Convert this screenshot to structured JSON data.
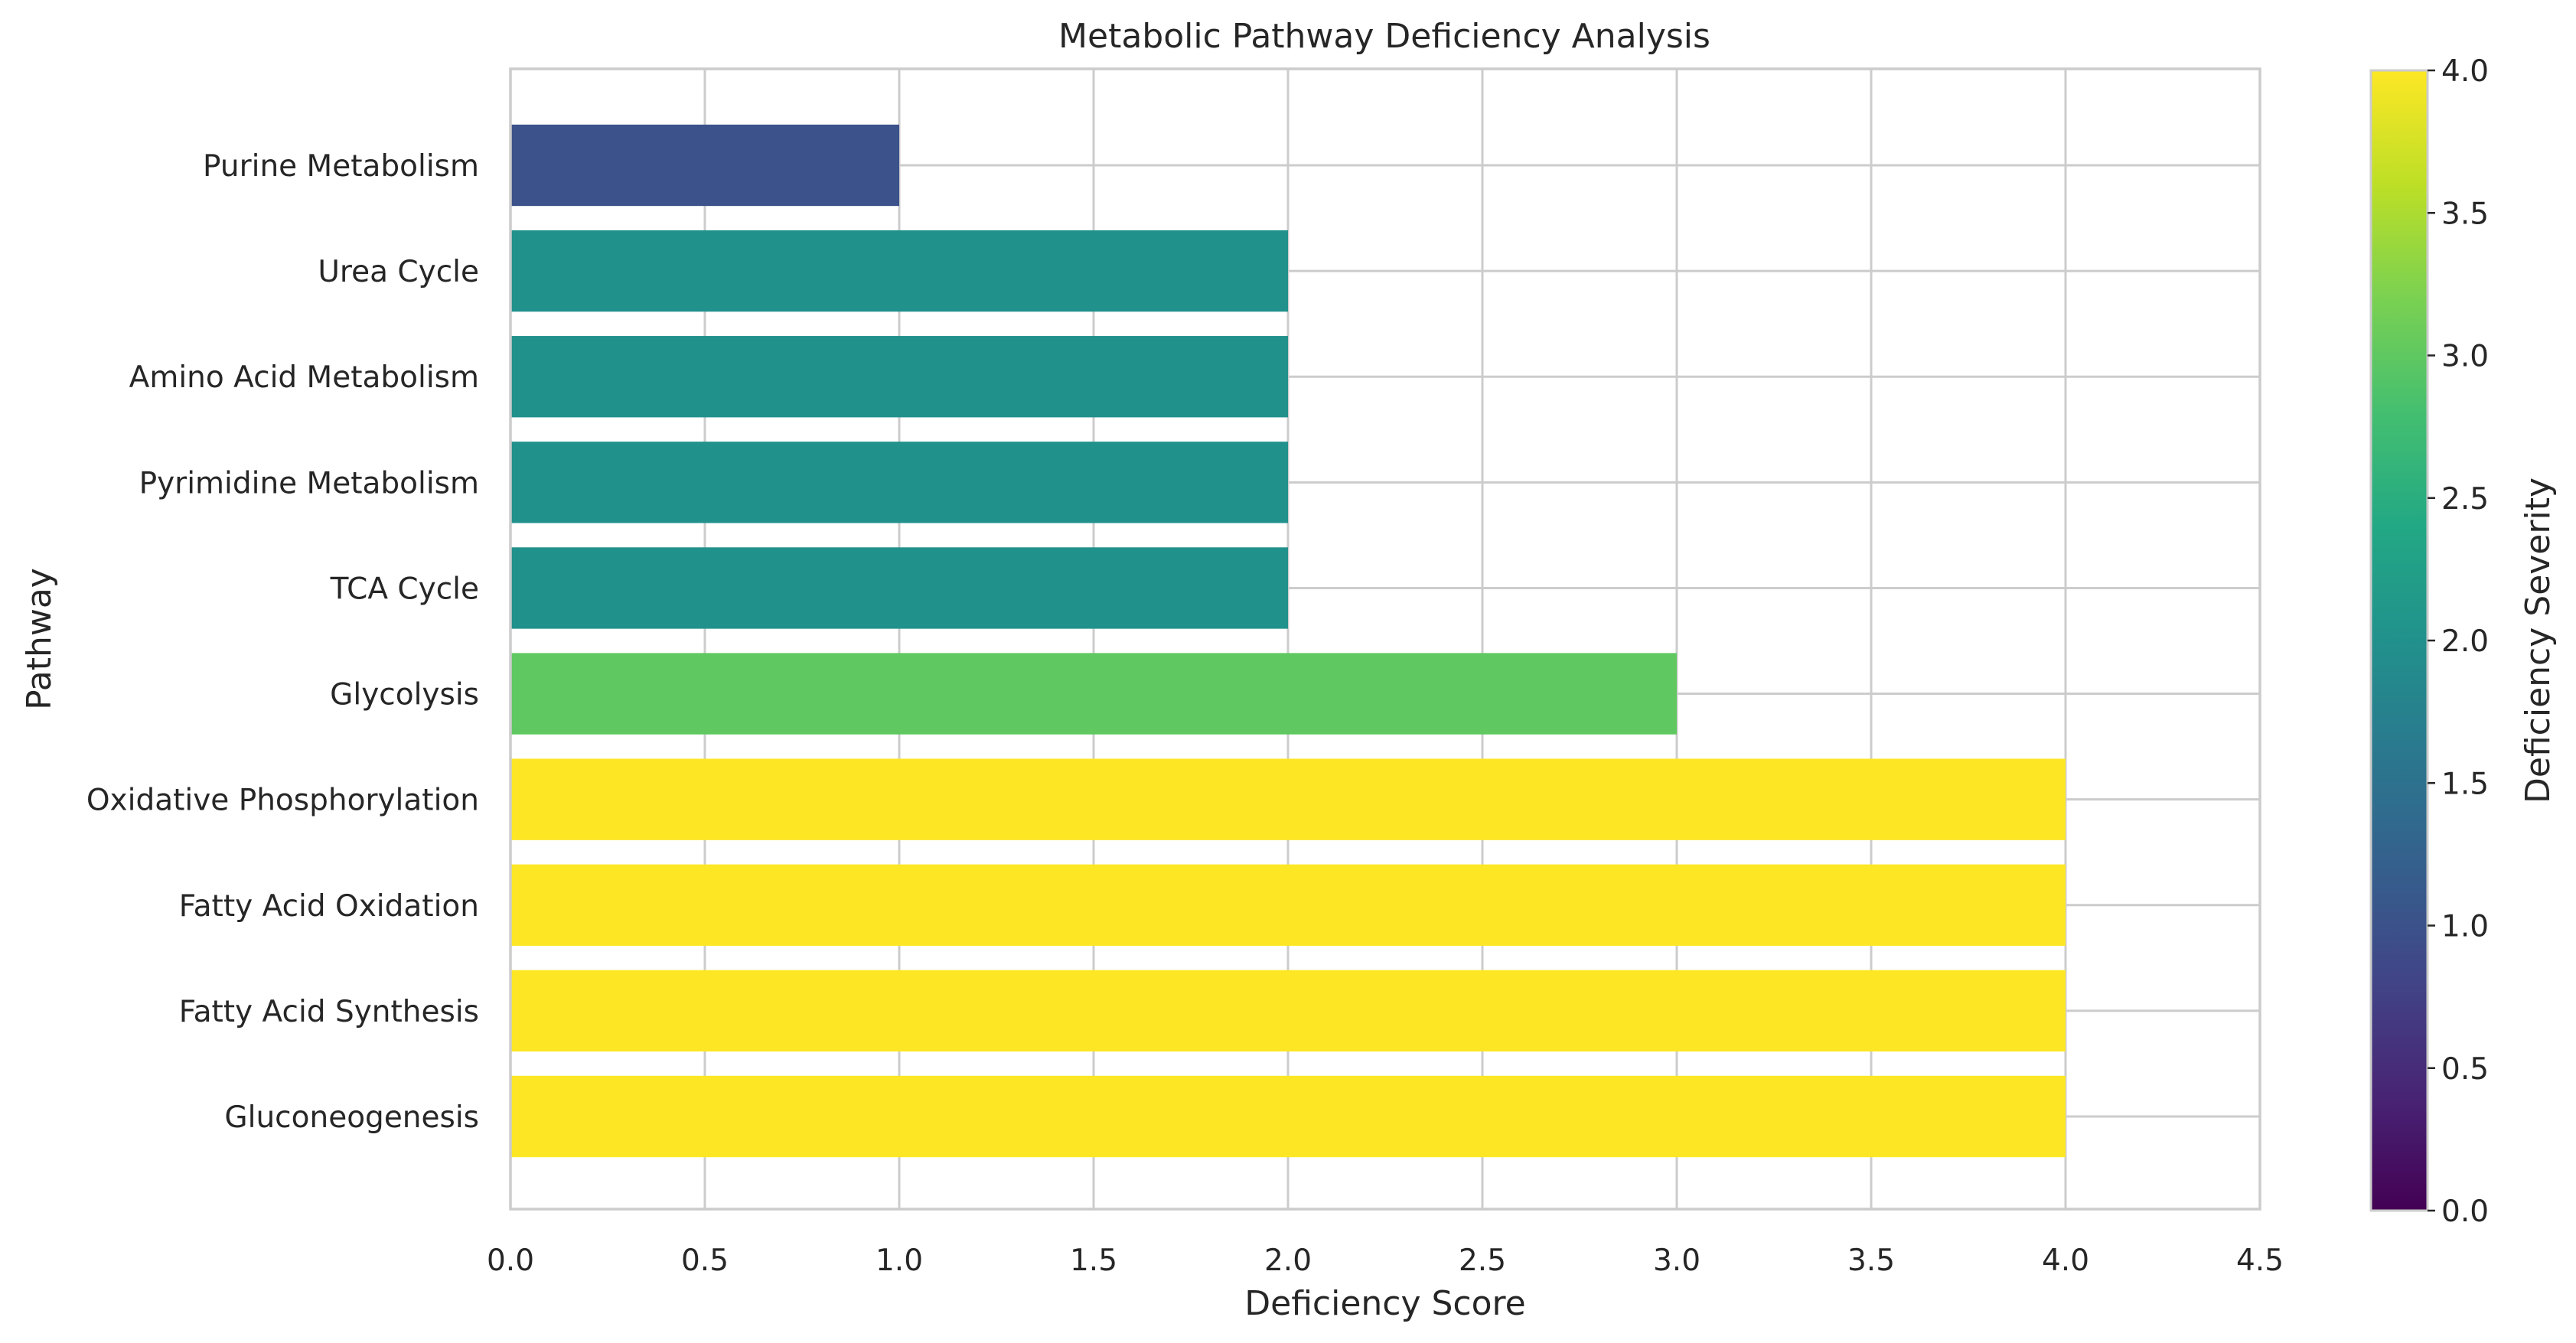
{
  "chart_data": {
    "type": "bar",
    "orientation": "horizontal",
    "title": "Metabolic Pathway Deficiency Analysis",
    "xlabel": "Deficiency Score",
    "ylabel": "Pathway",
    "categories": [
      "Gluconeogenesis",
      "Fatty Acid Synthesis",
      "Fatty Acid Oxidation",
      "Oxidative Phosphorylation",
      "Glycolysis",
      "TCA Cycle",
      "Pyrimidine Metabolism",
      "Amino Acid Metabolism",
      "Urea Cycle",
      "Purine Metabolism"
    ],
    "values": [
      4,
      4,
      4,
      4,
      3,
      2,
      2,
      2,
      2,
      1
    ],
    "xlim": [
      0,
      4.5
    ],
    "xticks": [
      "0.0",
      "0.5",
      "1.0",
      "1.5",
      "2.0",
      "2.5",
      "3.0",
      "3.5",
      "4.0",
      "4.5"
    ],
    "grid": true,
    "colormap": "viridis",
    "colorbar": {
      "label": "Deficiency Severity",
      "range": [
        0,
        4
      ],
      "ticks": [
        "0.0",
        "0.5",
        "1.0",
        "1.5",
        "2.0",
        "2.5",
        "3.0",
        "3.5",
        "4.0"
      ]
    }
  }
}
